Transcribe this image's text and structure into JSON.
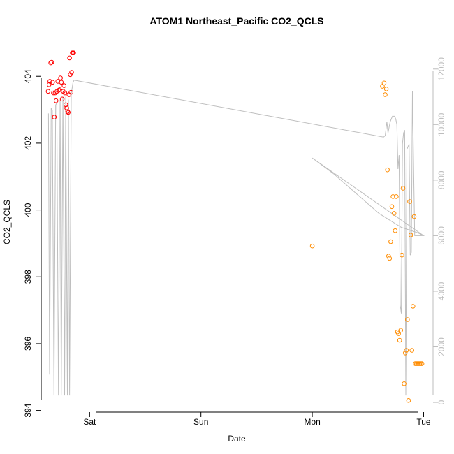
{
  "chart_data": {
    "type": "scatter",
    "title": "ATOM1 Northeast_Pacific CO2_QCLS",
    "xlabel": "Date",
    "ylabel": "CO2_QCLS",
    "x_ticks": [
      "Sat",
      "Sun",
      "Mon",
      "Tue"
    ],
    "y_ticks": [
      394,
      396,
      398,
      400,
      402,
      404
    ],
    "y_right_ticks": [
      0,
      2000,
      4000,
      6000,
      8000,
      10000,
      12000
    ],
    "x_unit_note": "days since Friday 00:00; Sat=1, Sun=2, Mon=3, Tue=4",
    "xlim": [
      0.565,
      4.085
    ],
    "ylim": [
      393.95,
      405.05
    ],
    "y_right_lim": [
      -350,
      13000
    ],
    "colors": {
      "series_red": "#ff0000",
      "series_orange": "#ff8c00",
      "altitude_line": "#bebebe"
    },
    "series": [
      {
        "color": "#ff0000",
        "x": [
          0.627,
          0.635,
          0.643,
          0.651,
          0.659,
          0.667,
          0.675,
          0.683,
          0.69,
          0.698,
          0.706,
          0.714,
          0.722,
          0.73,
          0.738,
          0.746,
          0.754,
          0.762,
          0.77,
          0.778,
          0.786,
          0.794,
          0.802,
          0.808,
          0.814,
          0.82,
          0.826,
          0.832,
          0.838,
          0.844,
          0.85,
          0.856
        ],
        "y": [
          403.55,
          403.75,
          403.85,
          404.4,
          404.42,
          403.82,
          403.5,
          402.78,
          403.5,
          403.27,
          403.55,
          403.85,
          403.58,
          403.6,
          403.95,
          403.82,
          403.32,
          403.55,
          403.72,
          403.5,
          403.15,
          403.05,
          402.95,
          402.92,
          403.45,
          404.55,
          404.05,
          403.52,
          404.12,
          404.7,
          404.7,
          404.7
        ]
      },
      {
        "color": "#ff8c00",
        "x": [
          3.0,
          3.63,
          3.645,
          3.655,
          3.665,
          3.675,
          3.685,
          3.695,
          3.705,
          3.715,
          3.725,
          3.735,
          3.745,
          3.755,
          3.765,
          3.775,
          3.785,
          3.795,
          3.805,
          3.815,
          3.825,
          3.835,
          3.845,
          3.855,
          3.865,
          3.875,
          3.885,
          3.895,
          3.905,
          3.915,
          3.925,
          3.935,
          3.945,
          3.955,
          3.965,
          3.975,
          3.985
        ],
        "y": [
          398.92,
          403.7,
          403.8,
          403.45,
          403.62,
          401.2,
          398.62,
          398.55,
          399.05,
          400.1,
          400.4,
          399.9,
          399.38,
          400.4,
          396.35,
          396.3,
          396.1,
          396.4,
          398.65,
          400.65,
          394.8,
          395.72,
          395.8,
          396.72,
          394.3,
          400.25,
          399.25,
          395.8,
          397.12,
          399.8,
          395.4,
          395.4,
          395.4,
          395.4,
          395.4,
          395.4,
          395.4
        ]
      }
    ],
    "altitude_series": {
      "color": "#bebebe",
      "x": [
        0.63,
        0.64,
        0.655,
        0.665,
        0.68,
        0.695,
        0.705,
        0.72,
        0.735,
        0.745,
        0.76,
        0.775,
        0.785,
        0.8,
        0.81,
        0.82,
        0.835,
        0.85,
        0.86,
        3.64,
        3.655,
        3.67,
        3.68,
        3.7,
        3.72,
        3.74,
        3.75,
        3.76,
        3.77,
        3.78,
        3.79,
        3.8,
        3.81,
        3.82,
        3.83,
        3.84,
        3.85,
        3.86,
        3.87,
        3.88,
        3.89,
        3.9,
        3.92,
        3.94,
        3.95,
        3.96,
        3.97,
        3.98,
        3.99,
        4.0,
        3.0,
        3.2,
        3.4,
        3.6,
        3.8,
        3.95,
        4.0
      ],
      "y": [
        10400,
        1000,
        10600,
        10500,
        250,
        10700,
        10800,
        250,
        10900,
        250,
        11000,
        250,
        11000,
        250,
        10900,
        250,
        11100,
        11500,
        11600,
        9550,
        9600,
        10100,
        9700,
        10100,
        10300,
        10300,
        10200,
        10000,
        8400,
        8900,
        3500,
        3200,
        9300,
        9700,
        9800,
        250,
        9100,
        9200,
        9300,
        5300,
        5400,
        11200,
        6000,
        6000,
        6000,
        6000,
        6000,
        6000,
        6000,
        6000,
        8800,
        8200,
        7500,
        6800,
        6300,
        6100,
        6000
      ]
    }
  }
}
